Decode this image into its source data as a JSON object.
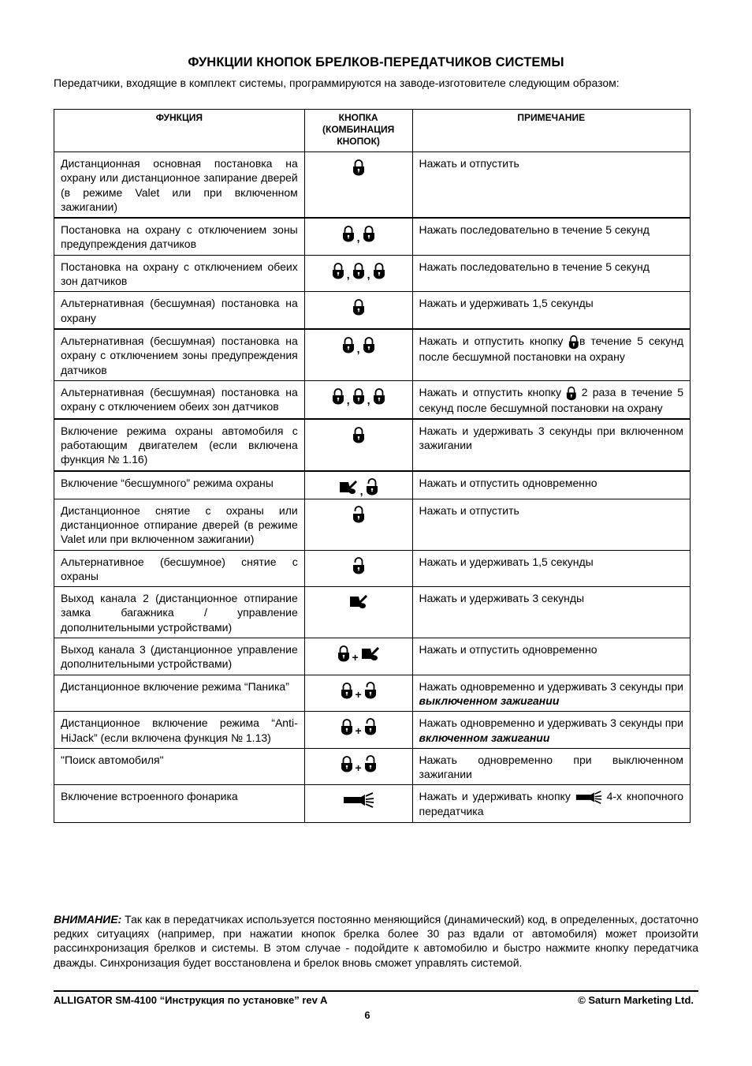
{
  "title": "ФУНКЦИИ КНОПОК БРЕЛКОВ-ПЕРЕДАТЧИКОВ СИСТЕМЫ",
  "intro": "Передатчики, входящие в комплект системы, программируются на заводе-изготовителе следующим образом:",
  "table": {
    "headers": [
      "ФУНКЦИЯ",
      "КНОПКА (КОМБИНАЦИЯ КНОПОК)",
      "ПРИМЕЧАНИЕ"
    ],
    "rows": [
      {
        "function": "Дистанционная основная постановка на охрану или дистанционное запирание дверей (в режиме Valet или при включенном зажигании)",
        "buttons": [
          "lock"
        ],
        "note": [
          {
            "t": "Нажать и отпустить"
          }
        ]
      },
      {
        "function": "Постановка на охрану с отключением зоны предупреждения датчиков",
        "buttons": [
          "lock",
          ",",
          "lock"
        ],
        "note": [
          {
            "t": "Нажать последовательно в течение 5 секунд"
          }
        ]
      },
      {
        "function": "Постановка на охрану с отключением обеих зон датчиков",
        "buttons": [
          "lock",
          ",",
          "lock",
          ",",
          "lock"
        ],
        "note": [
          {
            "t": "Нажать последовательно в течение 5 секунд"
          }
        ]
      },
      {
        "function": "Альтернативная (бесшумная) постановка на охрану",
        "buttons": [
          "lock"
        ],
        "note": [
          {
            "t": "Нажать и удерживать 1,5 секунды"
          }
        ]
      },
      {
        "function": "Альтернативная (бесшумная) постановка на охрану с отключением зоны предупреждения датчиков",
        "buttons": [
          "lock",
          ",",
          "lock"
        ],
        "note": [
          {
            "t": "Нажать и отпустить кнопку "
          },
          {
            "icon": "lock"
          },
          {
            "t": "в течение 5 секунд после бесшумной постановки на охрану"
          }
        ]
      },
      {
        "function": "Альтернативная (бесшумная) постановка на охрану с отключением обеих зон датчиков",
        "buttons": [
          "lock",
          ",",
          "lock",
          ",",
          "lock"
        ],
        "note": [
          {
            "t": "Нажать и отпустить кнопку "
          },
          {
            "icon": "lock"
          },
          {
            "t": " 2 раза в течение 5 секунд после бесшумной постановки на охрану"
          }
        ]
      },
      {
        "function": "Включение режима охраны автомобиля с работающим двигателем (если включена функция № 1.16)",
        "buttons": [
          "lock"
        ],
        "note": [
          {
            "t": "Нажать и удерживать 3 секунды при включенном зажигании"
          }
        ]
      },
      {
        "function": "Включение “бесшумного” режима охраны",
        "buttons": [
          "trunk",
          ",",
          "unlock"
        ],
        "note": [
          {
            "t": "Нажать и отпустить одновременно"
          }
        ]
      },
      {
        "function": "Дистанционное снятие с охраны или дистанционное отпирание дверей (в режиме Valet или при включенном зажигании)",
        "buttons": [
          "unlock"
        ],
        "note": [
          {
            "t": "Нажать и отпустить"
          }
        ]
      },
      {
        "function": "Альтернативное (бесшумное) снятие с охраны",
        "buttons": [
          "unlock"
        ],
        "note": [
          {
            "t": "Нажать и удерживать 1,5 секунды"
          }
        ]
      },
      {
        "function": "Выход канала 2 (дистанционное отпирание замка багажника / управление дополнительными устройствами)",
        "buttons": [
          "trunk"
        ],
        "note": [
          {
            "t": "Нажать и удерживать 3 секунды"
          }
        ]
      },
      {
        "function": "Выход канала 3 (дистанционное управление дополнительными устройствами)",
        "buttons": [
          "lock",
          "+",
          "trunk"
        ],
        "note": [
          {
            "t": "Нажать и отпустить одновременно"
          }
        ]
      },
      {
        "function": "Дистанционное включение режима “Паника”",
        "buttons": [
          "lock",
          "+",
          "unlock"
        ],
        "note": [
          {
            "t": "Нажать одновременно и удерживать 3 секунды при "
          },
          {
            "t": "выключенном зажигании",
            "em": true
          }
        ]
      },
      {
        "function": "Дистанционное включение режима “Anti-HiJack” (если включена функция № 1.13)",
        "buttons": [
          "lock",
          "+",
          "unlock"
        ],
        "note": [
          {
            "t": "Нажать одновременно и удерживать 3 секунды при "
          },
          {
            "t": "включенном зажигании",
            "em": true
          }
        ]
      },
      {
        "function": "\"Поиск автомобиля\"",
        "buttons": [
          "lock",
          "+",
          "unlock"
        ],
        "note": [
          {
            "t": "Нажать одновременно при выключенном зажигании"
          }
        ]
      },
      {
        "function": "Включение встроенного фонарика",
        "buttons": [
          "flashlight"
        ],
        "note": [
          {
            "t": "Нажать и удерживать кнопку "
          },
          {
            "icon": "flashlight"
          },
          {
            "t": " 4-х кнопочного передатчика"
          }
        ]
      }
    ]
  },
  "warning": {
    "label": "ВНИМАНИЕ:",
    "text": " Так как в передатчиках используется постоянно меняющийся (динамический) код, в определенных, достаточно редких ситуациях (например, при нажатии кнопок брелка более 30 раз вдали от автомобиля) может произойти рассинхронизация брелков и системы. В этом случае - подойдите к автомобилю и быстро нажмите кнопку передатчика дважды. Синхронизация будет восстановлена и брелок вновь сможет управлять системой."
  },
  "footer": {
    "left": "ALLIGATOR SM-4100 “Инструкция по установке” rev A",
    "right": "© Saturn Marketing Ltd.",
    "page": "6"
  },
  "icons": {
    "lock": "padlock-locked-icon",
    "unlock": "padlock-unlocked-icon",
    "trunk": "car-trunk-icon",
    "flashlight": "flashlight-icon"
  }
}
